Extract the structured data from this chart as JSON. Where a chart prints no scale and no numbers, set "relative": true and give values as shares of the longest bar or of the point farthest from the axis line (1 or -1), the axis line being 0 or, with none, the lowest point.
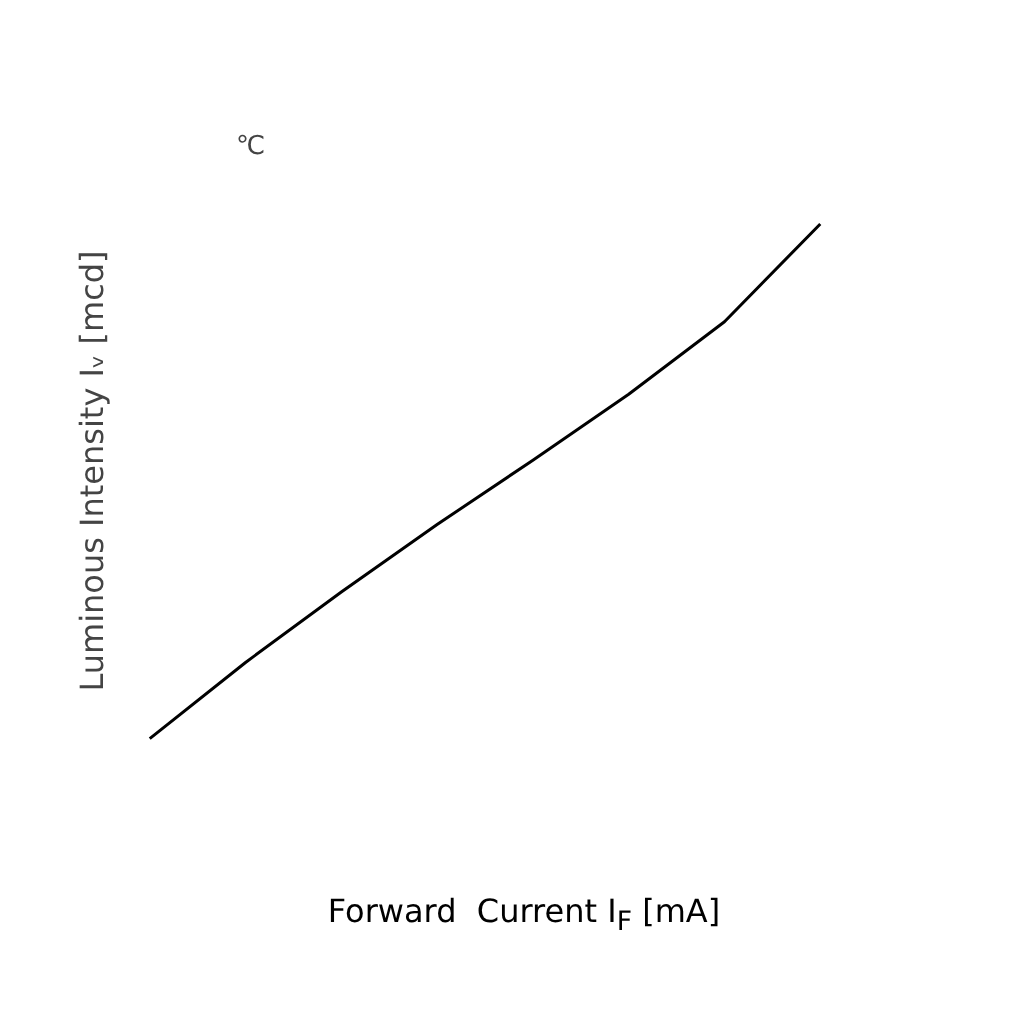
{
  "chart_data": {
    "type": "line",
    "relative": true,
    "xlabel": "Forward   Current I$_{F}$ [mA]",
    "ylabel": "Luminous Intensity Iᵥ [mcd]",
    "annotations": [
      "℃"
    ],
    "categories": [
      null,
      null,
      null,
      null,
      null,
      null,
      null,
      null
    ],
    "series": [
      {
        "color": "#000000",
        "values": [
          0,
          0.148,
          0.285,
          0.416,
          0.541,
          0.669,
          0.81,
          1
        ]
      }
    ]
  }
}
